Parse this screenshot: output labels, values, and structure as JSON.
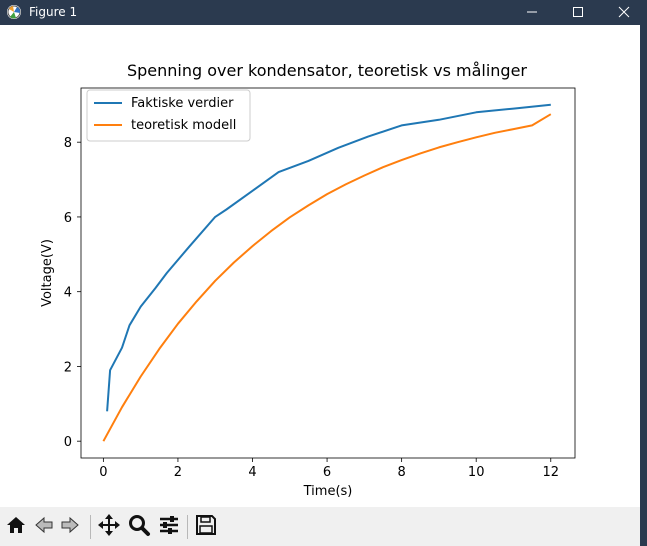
{
  "window": {
    "title": "Figure 1",
    "icon": "matplotlib-figure-icon",
    "controls": [
      "minimize-icon",
      "maximize-icon",
      "close-icon"
    ]
  },
  "toolbar": {
    "items": [
      "home-icon",
      "back-arrow-icon",
      "forward-arrow-icon",
      "pan-move-icon",
      "zoom-magnifier-icon",
      "configure-subplots-icon",
      "save-floppy-icon"
    ]
  },
  "colors": {
    "titlebar": "#2b3a4f",
    "series_blue": "#1f77b4",
    "series_orange": "#ff7f0e",
    "toolbar_bg": "#f0f0f0"
  },
  "chart_data": {
    "type": "line",
    "title": "Spenning over kondensator, teoretisk vs målinger",
    "xlabel": "Time(s)",
    "ylabel": "Voltage(V)",
    "xlim": [
      -0.6,
      12.65
    ],
    "ylim": [
      -0.45,
      9.45
    ],
    "xticks": [
      0,
      2,
      4,
      6,
      8,
      10,
      12
    ],
    "yticks": [
      0,
      2,
      4,
      6,
      8
    ],
    "grid": false,
    "legend_position": "upper left",
    "series": [
      {
        "name": "Faktiske verdier",
        "color": "#1f77b4",
        "x": [
          0.1,
          0.18,
          0.5,
          0.7,
          1.0,
          1.4,
          1.7,
          2.3,
          3.0,
          3.3,
          4.0,
          4.7,
          5.5,
          6.3,
          7.1,
          8.0,
          9.0,
          10.0,
          11.0,
          12.0
        ],
        "y": [
          0.8,
          1.9,
          2.5,
          3.1,
          3.6,
          4.1,
          4.5,
          5.2,
          6.0,
          6.2,
          6.7,
          7.2,
          7.5,
          7.85,
          8.15,
          8.45,
          8.6,
          8.8,
          8.9,
          9.0
        ]
      },
      {
        "name": "teoretisk modell",
        "color": "#ff7f0e",
        "x": [
          0,
          0.5,
          1,
          1.5,
          2,
          2.5,
          3,
          3.5,
          4,
          4.5,
          5,
          5.5,
          6,
          6.5,
          7,
          7.5,
          8,
          8.5,
          9,
          9.5,
          10,
          10.5,
          11,
          11.5,
          12
        ],
        "y": [
          0,
          0.91,
          1.73,
          2.47,
          3.14,
          3.74,
          4.29,
          4.78,
          5.22,
          5.62,
          5.99,
          6.31,
          6.61,
          6.87,
          7.11,
          7.33,
          7.52,
          7.7,
          7.86,
          8.0,
          8.13,
          8.25,
          8.35,
          8.45,
          8.75
        ]
      }
    ]
  }
}
